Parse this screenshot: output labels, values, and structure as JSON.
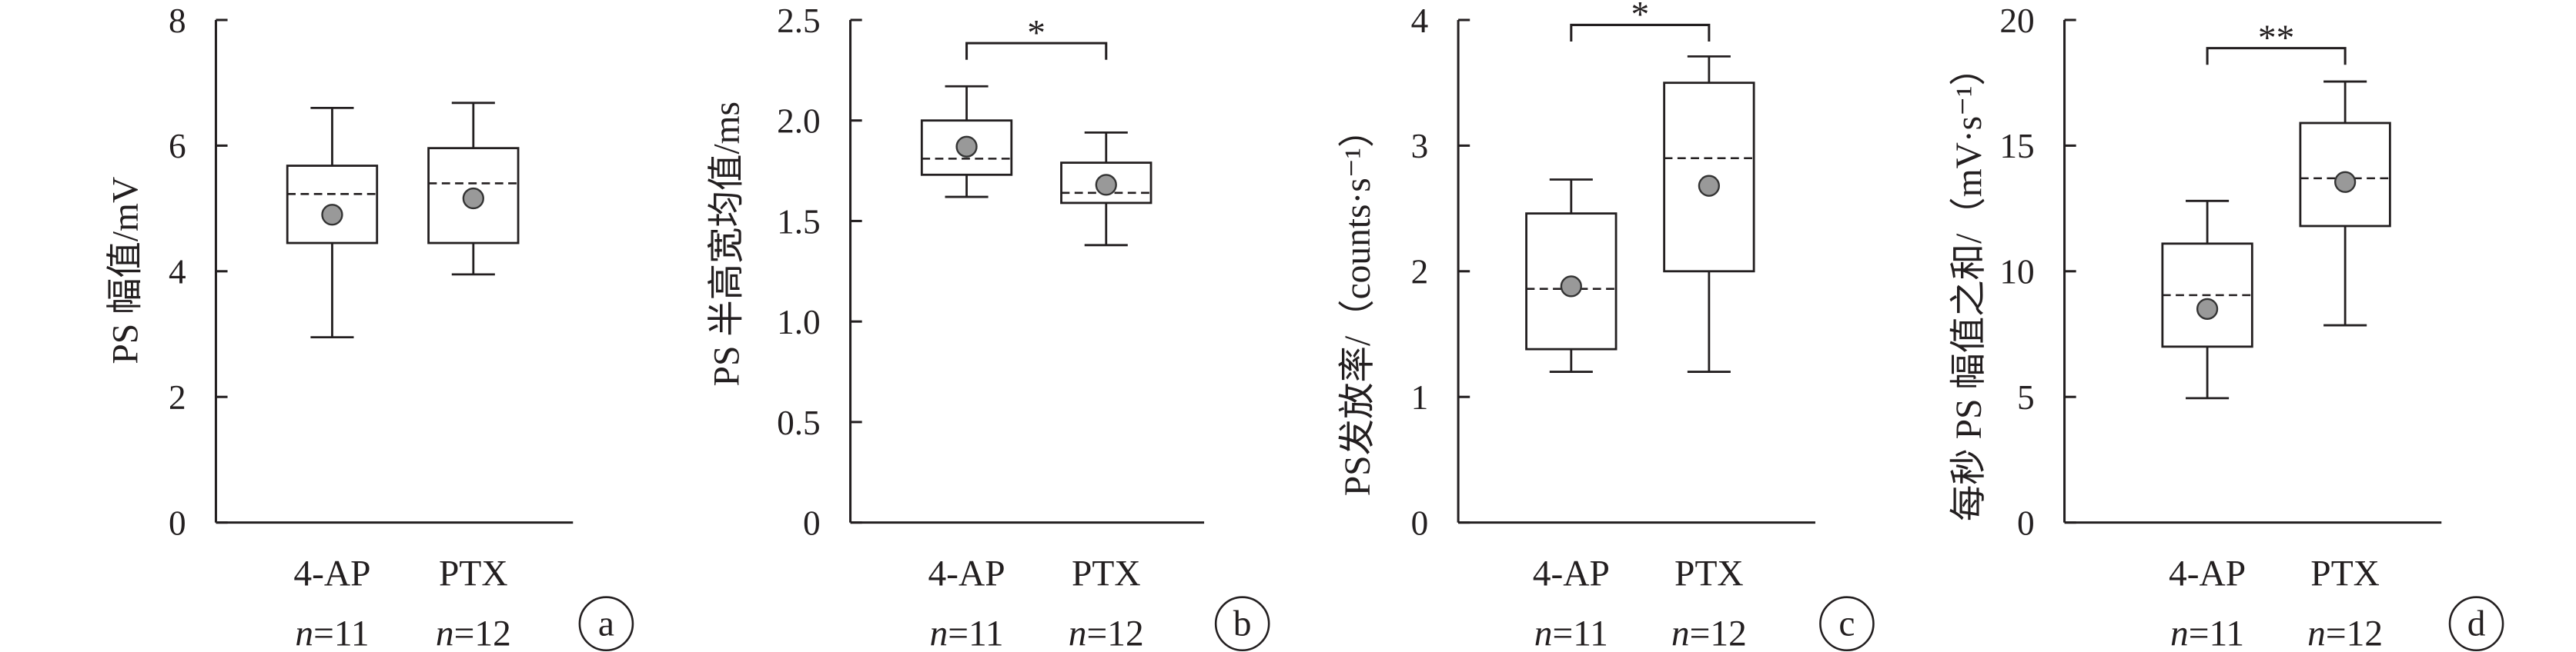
{
  "colors": {
    "ink": "#231f20",
    "mean_marker": "#999999",
    "background": "#ffffff"
  },
  "chart_data": [
    {
      "panel": "a",
      "type": "box",
      "ylabel": "PS 幅值/mV",
      "ylim": [
        0,
        8
      ],
      "yticks": [
        0,
        2,
        4,
        6,
        8
      ],
      "ytick_labels": [
        "0",
        "2",
        "4",
        "6",
        "8"
      ],
      "categories": [
        "4-AP",
        "PTX"
      ],
      "n_labels": [
        "n=11",
        "n=12"
      ],
      "boxes": [
        {
          "category": "4-AP",
          "min": 2.95,
          "q1": 4.45,
          "median": 5.23,
          "q3": 5.68,
          "max": 6.6,
          "mean": 4.9
        },
        {
          "category": "PTX",
          "min": 3.95,
          "q1": 4.45,
          "median": 5.4,
          "q3": 5.96,
          "max": 6.68,
          "mean": 5.16
        }
      ],
      "significance": ""
    },
    {
      "panel": "b",
      "type": "box",
      "ylabel": "PS 半高宽均值/ms",
      "ylim": [
        0,
        2.5
      ],
      "yticks": [
        0,
        0.5,
        1.0,
        1.5,
        2.0,
        2.5
      ],
      "ytick_labels": [
        "0",
        "0.5",
        "1.0",
        "1.5",
        "2.0",
        "2.5"
      ],
      "categories": [
        "4-AP",
        "PTX"
      ],
      "n_labels": [
        "n=11",
        "n=12"
      ],
      "boxes": [
        {
          "category": "4-AP",
          "min": 1.62,
          "q1": 1.73,
          "median": 1.81,
          "q3": 2.0,
          "max": 2.17,
          "mean": 1.87
        },
        {
          "category": "PTX",
          "min": 1.38,
          "q1": 1.59,
          "median": 1.64,
          "q3": 1.79,
          "max": 1.94,
          "mean": 1.68
        }
      ],
      "significance": "*"
    },
    {
      "panel": "c",
      "type": "box",
      "ylabel": "PS发放率/（counts·s⁻¹）",
      "ylim": [
        0,
        4
      ],
      "yticks": [
        0,
        1,
        2,
        3,
        4
      ],
      "ytick_labels": [
        "0",
        "1",
        "2",
        "3",
        "4"
      ],
      "categories": [
        "4-AP",
        "PTX"
      ],
      "n_labels": [
        "n=11",
        "n=12"
      ],
      "boxes": [
        {
          "category": "4-AP",
          "min": 1.2,
          "q1": 1.38,
          "median": 1.86,
          "q3": 2.46,
          "max": 2.73,
          "mean": 1.88
        },
        {
          "category": "PTX",
          "min": 1.2,
          "q1": 2.0,
          "median": 2.9,
          "q3": 3.5,
          "max": 3.71,
          "mean": 2.68
        }
      ],
      "significance": "*"
    },
    {
      "panel": "d",
      "type": "box",
      "ylabel": "每秒 PS 幅值之和/（mV·s⁻¹）",
      "ylim": [
        0,
        20
      ],
      "yticks": [
        0,
        5,
        10,
        15,
        20
      ],
      "ytick_labels": [
        "0",
        "5",
        "10",
        "15",
        "20"
      ],
      "categories": [
        "4-AP",
        "PTX"
      ],
      "n_labels": [
        "n=11",
        "n=12"
      ],
      "boxes": [
        {
          "category": "4-AP",
          "min": 4.95,
          "q1": 7.0,
          "median": 9.05,
          "q3": 11.1,
          "max": 12.8,
          "mean": 8.5
        },
        {
          "category": "PTX",
          "min": 7.85,
          "q1": 11.8,
          "median": 13.7,
          "q3": 15.9,
          "max": 17.55,
          "mean": 13.55
        }
      ],
      "significance": "**"
    }
  ]
}
